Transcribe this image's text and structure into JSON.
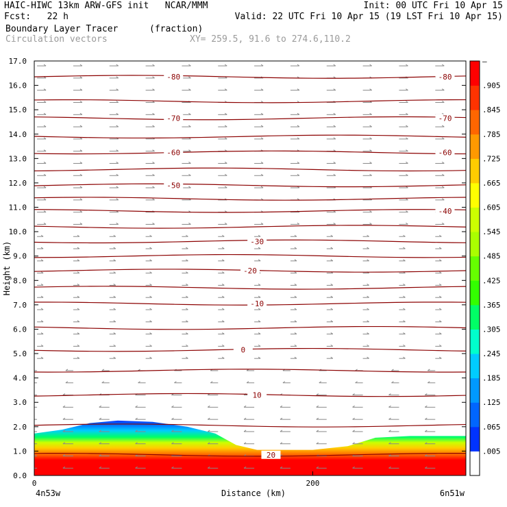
{
  "header": {
    "line1_left": "HAIC-HIWC 13km ARW-GFS init   NCAR/MMM",
    "line1_right": "Init: 00 UTC Fri 10 Apr 15",
    "line2_left": "Fcst:   22 h",
    "line2_right": "Valid: 22 UTC Fri 10 Apr 15 (19 LST Fri 10 Apr 15)",
    "field_name": "Boundary Layer Tracer",
    "field_units": "(fraction)",
    "vector_label": "Circulation vectors",
    "xy_label": "XY= 259.5, 91.6 to 274.6,110.2"
  },
  "chart_data": {
    "type": "heatmap",
    "ylabel": "Height (km)",
    "xlabel": "Distance (km)",
    "ylim": [
      0,
      17
    ],
    "xlim": [
      0,
      310
    ],
    "y_ticks": [
      "0.0",
      "1.0",
      "2.0",
      "3.0",
      "4.0",
      "5.0",
      "6.0",
      "7.0",
      "8.0",
      "9.0",
      "10.0",
      "11.0",
      "12.0",
      "13.0",
      "14.0",
      "15.0",
      "16.0",
      "17.0"
    ],
    "x_ticks": [
      {
        "value": 0,
        "label": "0"
      },
      {
        "value": 200,
        "label": "200"
      }
    ],
    "x_endpoints": {
      "left": "4n53w",
      "right": "6n51w"
    },
    "tracer_top_km": [
      {
        "x": 0,
        "h": 1.72
      },
      {
        "x": 20,
        "h": 1.88
      },
      {
        "x": 40,
        "h": 2.15
      },
      {
        "x": 60,
        "h": 2.25
      },
      {
        "x": 85,
        "h": 2.2
      },
      {
        "x": 110,
        "h": 2.0
      },
      {
        "x": 130,
        "h": 1.72
      },
      {
        "x": 145,
        "h": 1.25
      },
      {
        "x": 160,
        "h": 1.05
      },
      {
        "x": 200,
        "h": 1.05
      },
      {
        "x": 225,
        "h": 1.2
      },
      {
        "x": 245,
        "h": 1.55
      },
      {
        "x": 270,
        "h": 1.62
      },
      {
        "x": 310,
        "h": 1.62
      }
    ],
    "isotherms": [
      {
        "y": 16.35,
        "label": "-80",
        "label_x": [
          100,
          295
        ]
      },
      {
        "y": 15.35
      },
      {
        "y": 14.65,
        "label": "-70",
        "label_x": [
          100,
          295
        ]
      },
      {
        "y": 13.9
      },
      {
        "y": 13.25,
        "label": "-60",
        "label_x": [
          100,
          295
        ]
      },
      {
        "y": 12.55
      },
      {
        "y": 11.9,
        "label": "-50",
        "label_x": [
          100
        ]
      },
      {
        "y": 11.35
      },
      {
        "y": 10.85,
        "label": "-40",
        "label_x": [
          295
        ]
      },
      {
        "y": 10.2
      },
      {
        "y": 9.6,
        "label": "-30",
        "label_x": [
          160
        ]
      },
      {
        "y": 9.0
      },
      {
        "y": 8.4,
        "label": "-20",
        "label_x": [
          155
        ]
      },
      {
        "y": 7.7
      },
      {
        "y": 7.05,
        "label": "-10",
        "label_x": [
          160
        ]
      },
      {
        "y": 6.05
      },
      {
        "y": 5.15,
        "label": "0",
        "label_x": [
          150
        ]
      },
      {
        "y": 4.3
      },
      {
        "y": 3.3,
        "label": "10",
        "label_x": [
          160
        ]
      },
      {
        "y": 2.05
      },
      {
        "y": 0.85,
        "label": "20",
        "label_x": [
          170
        ]
      }
    ],
    "colorbar": {
      "title": "",
      "labels": [
        ".005",
        ".065",
        ".125",
        ".185",
        ".245",
        ".305",
        ".365",
        ".425",
        ".485",
        ".545",
        ".605",
        ".665",
        ".725",
        ".785",
        ".845",
        ".905"
      ],
      "top_label": "–",
      "colors": [
        "#ffffff",
        "#0033ff",
        "#0066ff",
        "#0099ff",
        "#00ccff",
        "#00ffcc",
        "#00ff66",
        "#33ff00",
        "#66ff00",
        "#aaff00",
        "#ccff00",
        "#ffff00",
        "#ffcc00",
        "#ff9900",
        "#ff6600",
        "#ff3300",
        "#ff0000"
      ]
    },
    "grid": false,
    "legend": "colorbar right"
  }
}
